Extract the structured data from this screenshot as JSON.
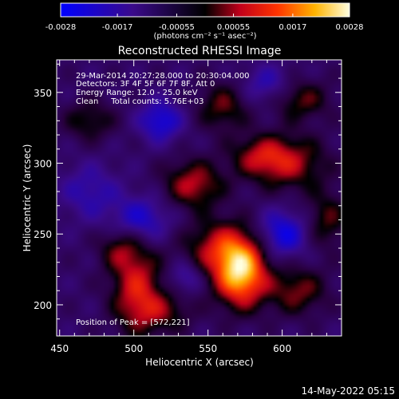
{
  "colorbar": {
    "tick_labels": [
      "-0.0028",
      "-0.0017",
      "-0.00055",
      "0.00055",
      "0.0017",
      "0.0028"
    ],
    "ticks": [
      -0.0028,
      -0.0017,
      -0.00055,
      0.00055,
      0.0017,
      0.0028
    ],
    "range": [
      -0.0028,
      0.0028
    ],
    "units_label": "(photons cm⁻² s⁻¹ asec⁻²)"
  },
  "plot": {
    "title": "Reconstructed RHESSI Image",
    "xlabel": "Heliocentric X (arcsec)",
    "ylabel": "Heliocentric Y (arcsec)",
    "info_lines": [
      "29-Mar-2014 20:27:28.000 to 20:30:04.000",
      "Detectors: 3F 4F 5F 6F 7F 8F, Att 0",
      "Energy Range: 12.0 - 25.0 keV",
      "Clean     Total counts: 5.76E+03"
    ],
    "peak_label": "Position of Peak = [572,221]"
  },
  "footer": {
    "timestamp": "14-May-2022 05:15"
  },
  "chart_data": {
    "type": "heatmap",
    "title": "Reconstructed RHESSI Image",
    "xlabel": "Heliocentric X (arcsec)",
    "ylabel": "Heliocentric Y (arcsec)",
    "xlim": [
      448,
      640
    ],
    "ylim": [
      178,
      373
    ],
    "x_ticks": [
      450,
      500,
      550,
      600
    ],
    "y_ticks": [
      200,
      250,
      300,
      350
    ],
    "zlim": [
      -0.0028,
      0.0028
    ],
    "peak": [
      572,
      221
    ],
    "blobs": [
      {
        "x": 572,
        "y": 221,
        "v": 0.003,
        "sx": 12,
        "sy": 16
      },
      {
        "x": 560,
        "y": 240,
        "v": 0.0017,
        "sx": 18,
        "sy": 14
      },
      {
        "x": 540,
        "y": 285,
        "v": 0.0016,
        "sx": 14,
        "sy": 12
      },
      {
        "x": 502,
        "y": 212,
        "v": 0.0018,
        "sx": 12,
        "sy": 22
      },
      {
        "x": 520,
        "y": 195,
        "v": 0.001,
        "sx": 14,
        "sy": 10
      },
      {
        "x": 490,
        "y": 240,
        "v": 0.001,
        "sx": 10,
        "sy": 10
      },
      {
        "x": 610,
        "y": 210,
        "v": 0.0013,
        "sx": 14,
        "sy": 12
      },
      {
        "x": 605,
        "y": 300,
        "v": 0.0014,
        "sx": 18,
        "sy": 14
      },
      {
        "x": 585,
        "y": 305,
        "v": 0.0012,
        "sx": 14,
        "sy": 10
      },
      {
        "x": 612,
        "y": 345,
        "v": 0.0012,
        "sx": 14,
        "sy": 10
      },
      {
        "x": 560,
        "y": 340,
        "v": 0.0012,
        "sx": 12,
        "sy": 12
      },
      {
        "x": 630,
        "y": 260,
        "v": 0.0011,
        "sx": 10,
        "sy": 14
      },
      {
        "x": 470,
        "y": 330,
        "v": 0.001,
        "sx": 12,
        "sy": 10
      },
      {
        "x": 600,
        "y": 250,
        "v": -0.0016,
        "sx": 12,
        "sy": 12
      },
      {
        "x": 505,
        "y": 260,
        "v": -0.0013,
        "sx": 14,
        "sy": 12
      },
      {
        "x": 518,
        "y": 330,
        "v": -0.0015,
        "sx": 10,
        "sy": 10
      },
      {
        "x": 590,
        "y": 355,
        "v": -0.001,
        "sx": 12,
        "sy": 10
      },
      {
        "x": 535,
        "y": 220,
        "v": -0.001,
        "sx": 8,
        "sy": 8
      },
      {
        "x": 470,
        "y": 280,
        "v": -0.0009,
        "sx": 14,
        "sy": 14
      }
    ]
  }
}
